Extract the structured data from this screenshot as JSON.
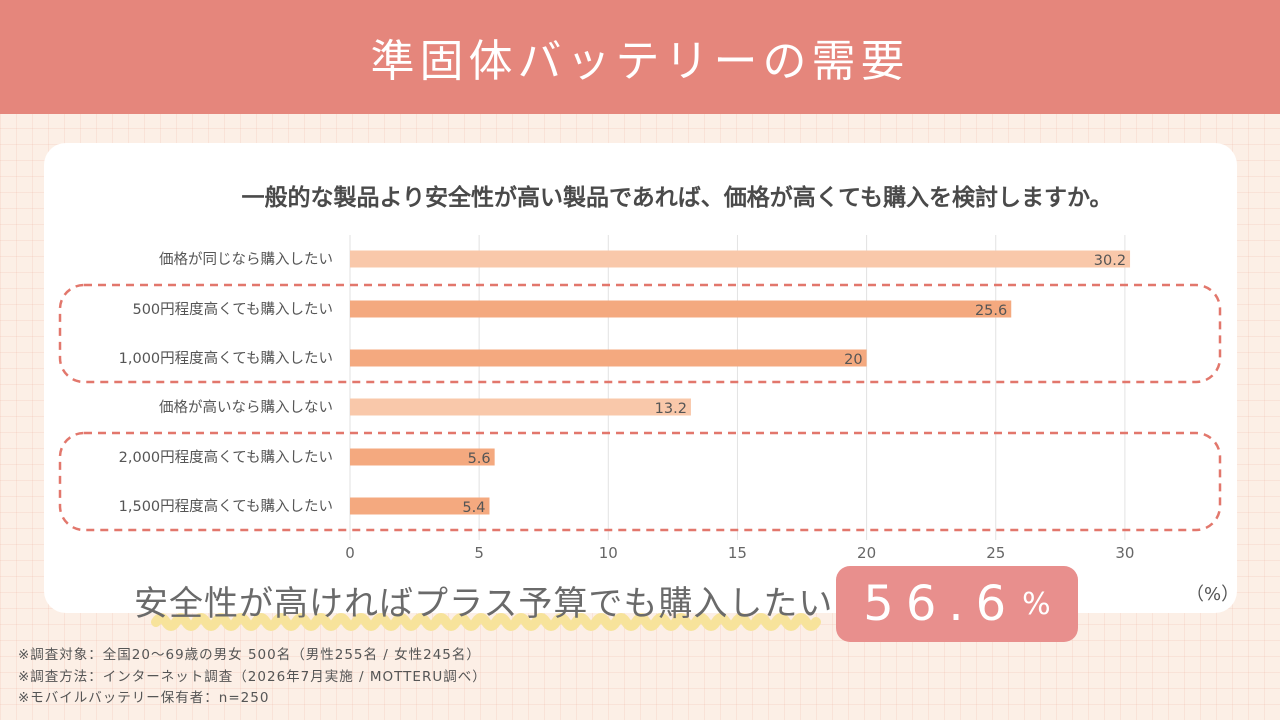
{
  "header": {
    "title": "準固体バッテリーの需要"
  },
  "chart_data": {
    "type": "bar",
    "orientation": "horizontal",
    "title": "一般的な製品より安全性が高い製品であれば、価格が高くても購入を検討しますか。",
    "unit_label": "（%）",
    "categories": [
      "価格が同じなら購入したい",
      "500円程度高くても購入したい",
      "1,000円程度高くても購入したい",
      "価格が高いなら購入しない",
      "2,000円程度高くても購入したい",
      "1,500円程度高くても購入したい"
    ],
    "values": [
      30.2,
      25.6,
      20,
      13.2,
      5.6,
      5.4
    ],
    "value_labels": [
      "30.2",
      "25.6",
      "20",
      "13.2",
      "5.6",
      "5.4"
    ],
    "bar_colors": [
      "#f9c8aa",
      "#f4a97f",
      "#f4a97f",
      "#f9c8aa",
      "#f4a97f",
      "#f4a97f"
    ],
    "xlim": [
      0,
      32
    ],
    "xticks": [
      0,
      5,
      10,
      15,
      20,
      25,
      30
    ],
    "grid": true,
    "highlight_groups": [
      [
        1,
        2
      ],
      [
        4,
        5
      ]
    ],
    "highlight_color": "#e2776c"
  },
  "highlight": {
    "text": "安全性が高ければプラス予算でも購入したい",
    "value": "56.6",
    "unit": "%"
  },
  "notes": [
    "※調査対象：全国20〜69歳の男女 500名（男性255名 / 女性245名）",
    "※調査方法：インターネット調査（2026年7月実施 / MOTTERU調べ）",
    "※モバイルバッテリー保有者：n=250"
  ],
  "colors": {
    "header_bg": "#e5867c",
    "badge_bg": "#e88f8d",
    "wave": "#f7e39b"
  }
}
